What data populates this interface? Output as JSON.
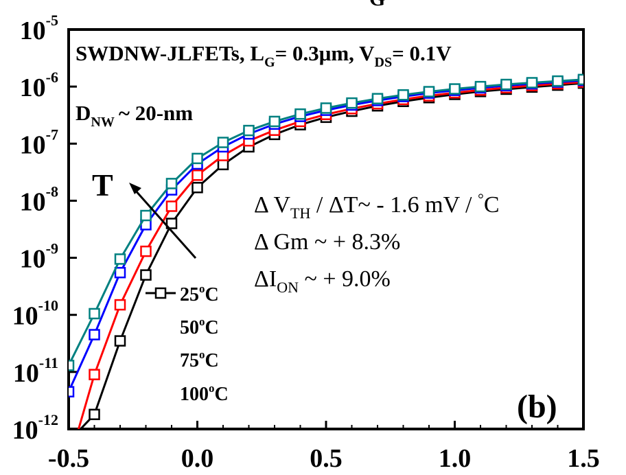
{
  "chart_data": {
    "type": "line",
    "title": "SWDNW-JLFETs, L",
    "title_sub_lg": "G",
    "title_mid": "= 0.3μm, V",
    "title_sub_vds": "DS",
    "title_end": "= 0.1V",
    "top_cut_label": "G",
    "x_ticks": [
      "-0.5",
      "0.0",
      "0.5",
      "1.0",
      "1.5"
    ],
    "x_tick_values": [
      -0.5,
      0.0,
      0.5,
      1.0,
      1.5
    ],
    "xlim": [
      -0.5,
      1.5
    ],
    "y_scale": "log",
    "ylim": [
      1e-12,
      1e-05
    ],
    "y_ticks": [
      {
        "base": "10",
        "exp": "-5",
        "value": 1e-05
      },
      {
        "base": "10",
        "exp": "-6",
        "value": 1e-06
      },
      {
        "base": "10",
        "exp": "-7",
        "value": 1e-07
      },
      {
        "base": "10",
        "exp": "-8",
        "value": 1e-08
      },
      {
        "base": "10",
        "exp": "-9",
        "value": 1e-09
      },
      {
        "base": "10",
        "exp": "-10",
        "value": 1e-10
      },
      {
        "base": "10",
        "exp": "-11",
        "value": 1e-11
      },
      {
        "base": "10",
        "exp": "-12",
        "value": 1e-12
      }
    ],
    "x": [
      -0.5,
      -0.4,
      -0.3,
      -0.2,
      -0.1,
      0.0,
      0.1,
      0.2,
      0.3,
      0.4,
      0.5,
      0.6,
      0.7,
      0.8,
      0.9,
      1.0,
      1.1,
      1.2,
      1.3,
      1.4,
      1.5
    ],
    "series": [
      {
        "name": "25°C",
        "name_base": "25",
        "name_deg": "o",
        "name_unit": "C",
        "color": "#000000",
        "values": [
          6e-13,
          1.8e-12,
          3.5e-11,
          5e-10,
          4e-09,
          1.7e-08,
          4.3e-08,
          8.8e-08,
          1.45e-07,
          2.15e-07,
          2.9e-07,
          3.7e-07,
          4.6e-07,
          5.5e-07,
          6.4e-07,
          7.3e-07,
          8.2e-07,
          9e-07,
          9.8e-07,
          1.06e-06,
          1.15e-06
        ]
      },
      {
        "name": "50°C",
        "name_base": "50",
        "name_deg": "o",
        "name_unit": "C",
        "color": "#ff0000",
        "values": [
          2.5e-13,
          9e-12,
          1.5e-10,
          1.3e-09,
          8e-09,
          2.8e-08,
          6.2e-08,
          1.12e-07,
          1.72e-07,
          2.45e-07,
          3.25e-07,
          4.1e-07,
          5e-07,
          5.95e-07,
          6.9e-07,
          7.8e-07,
          8.7e-07,
          9.55e-07,
          1.04e-06,
          1.12e-06,
          1.2e-06
        ]
      },
      {
        "name": "75°C",
        "name_base": "75",
        "name_deg": "o",
        "name_unit": "C",
        "color": "#0000ff",
        "values": [
          4.5e-12,
          4.5e-11,
          5.5e-10,
          3.8e-09,
          1.55e-08,
          4.4e-08,
          8.8e-08,
          1.48e-07,
          2.2e-07,
          3e-07,
          3.85e-07,
          4.75e-07,
          5.7e-07,
          6.7e-07,
          7.7e-07,
          8.6e-07,
          9.5e-07,
          1.04e-06,
          1.12e-06,
          1.2e-06,
          1.28e-06
        ]
      },
      {
        "name": "100°C",
        "name_base": "100",
        "name_deg": "o",
        "name_unit": "C",
        "color": "#008080",
        "values": [
          1.3e-11,
          1.05e-10,
          9.5e-10,
          5.5e-09,
          2e-08,
          5.5e-08,
          1.05e-07,
          1.7e-07,
          2.45e-07,
          3.3e-07,
          4.2e-07,
          5.15e-07,
          6.15e-07,
          7.15e-07,
          8.15e-07,
          9.1e-07,
          1e-06,
          1.09e-06,
          1.17e-06,
          1.25e-06,
          1.33e-06
        ]
      }
    ],
    "annotations": {
      "dnw_base": "D",
      "dnw_sub": "NW",
      "dnw_rest": "~ 20-nm",
      "arrow_label": "T",
      "line1_a": "Δ V",
      "line1_sub": "TH",
      "line1_b": " / ΔT~ - 1.6 mV / ",
      "line1_deg": "°",
      "line1_c": "C",
      "line2": "Δ Gm ~ + 8.3%",
      "line3_a": "ΔI",
      "line3_sub": "ON",
      "line3_b": " ~ + 9.0%",
      "panel": "(b)"
    },
    "grid": false,
    "legend_position": "lower-left inside plot"
  }
}
